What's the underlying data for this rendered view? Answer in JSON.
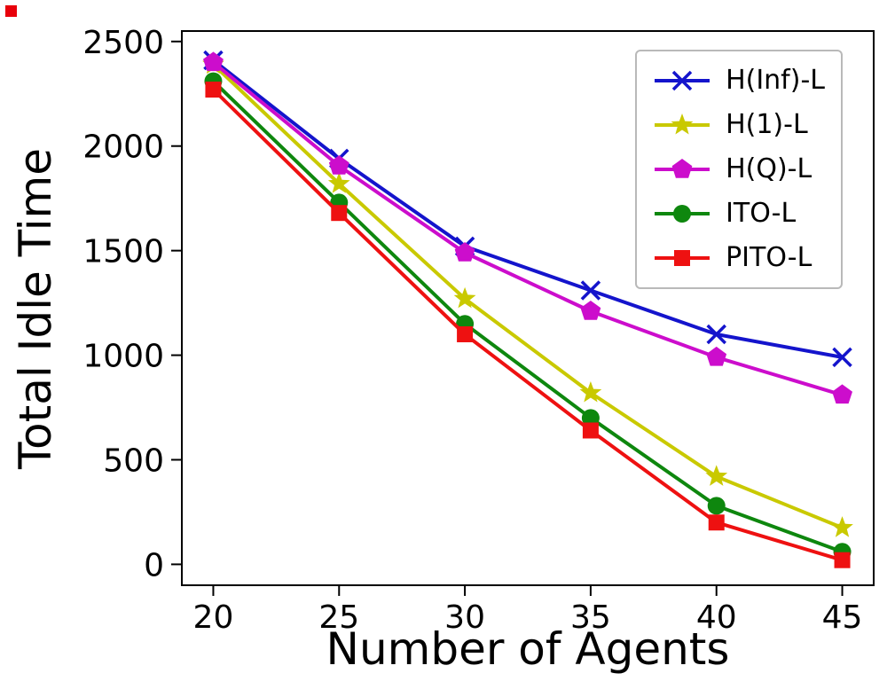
{
  "figure": {
    "background": "#ffffff",
    "corner_marker_color": "#e8000b"
  },
  "chart_data": {
    "type": "line",
    "title": "",
    "xlabel": "Number of Agents",
    "ylabel": "Total Idle Time",
    "x": [
      20,
      25,
      30,
      35,
      40,
      45
    ],
    "x_ticks": [
      20,
      25,
      30,
      35,
      40,
      45
    ],
    "y_ticks": [
      0,
      500,
      1000,
      1500,
      2000,
      2500
    ],
    "xlim": [
      18.75,
      46.25
    ],
    "ylim": [
      -100,
      2550
    ],
    "grid": false,
    "legend_position": "upper right",
    "series": [
      {
        "name": "H(Inf)-L",
        "marker": "x",
        "color": "#1414cc",
        "values": [
          2410,
          1940,
          1520,
          1310,
          1100,
          990
        ]
      },
      {
        "name": "H(1)-L",
        "marker": "star",
        "color": "#c9c900",
        "values": [
          2390,
          1820,
          1270,
          820,
          420,
          175
        ]
      },
      {
        "name": "H(Q)-L",
        "marker": "pentagon",
        "color": "#cc0dcc",
        "values": [
          2400,
          1905,
          1490,
          1210,
          990,
          810
        ]
      },
      {
        "name": "ITO-L",
        "marker": "circle",
        "color": "#0e870e",
        "values": [
          2310,
          1730,
          1150,
          700,
          280,
          60
        ]
      },
      {
        "name": "PITO-L",
        "marker": "square",
        "color": "#ee1111",
        "values": [
          2270,
          1680,
          1100,
          640,
          200,
          20
        ]
      }
    ]
  }
}
